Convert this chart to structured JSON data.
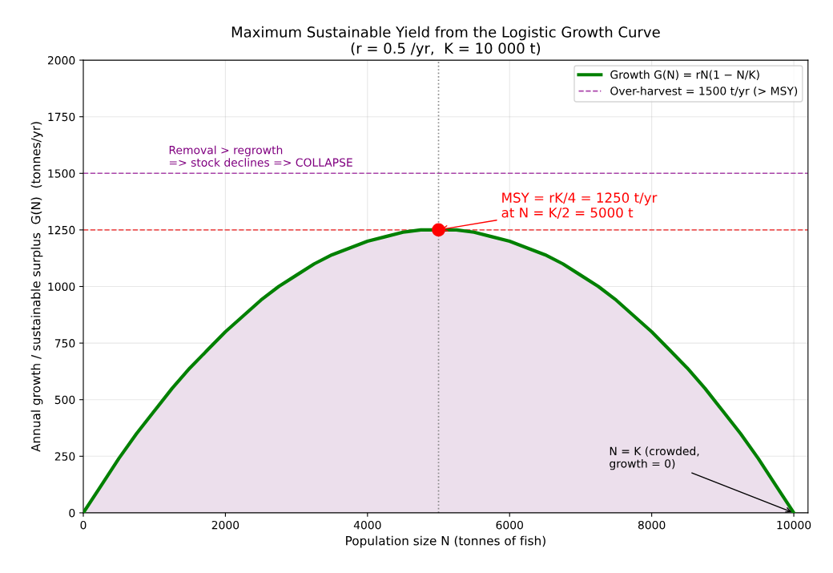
{
  "chart_data": {
    "type": "area",
    "title": "Maximum Sustainable Yield from the Logistic Growth Curve\n(r = 0.5 /yr,  K = 10 000 t)",
    "xlabel": "Population size N (tonnes of fish)",
    "ylabel": "Annual growth / sustainable surplus  G(N)  (tonnes/yr)",
    "x": [
      0,
      250,
      500,
      750,
      1000,
      1250,
      1500,
      1750,
      2000,
      2250,
      2500,
      2750,
      3000,
      3250,
      3500,
      3750,
      4000,
      4250,
      4500,
      4750,
      5000,
      5250,
      5500,
      5750,
      6000,
      6250,
      6500,
      6750,
      7000,
      7250,
      7500,
      7750,
      8000,
      8250,
      8500,
      8750,
      9000,
      9250,
      9500,
      9750,
      10000
    ],
    "series": [
      {
        "name": "Growth G(N) = rN(1 − N/K)",
        "color": "#008000",
        "values": [
          0,
          120,
          240,
          350,
          450,
          550,
          640,
          720,
          800,
          870,
          940,
          1000,
          1050,
          1100,
          1140,
          1170,
          1200,
          1220,
          1240,
          1250,
          1250,
          1250,
          1240,
          1220,
          1200,
          1170,
          1140,
          1100,
          1050,
          1000,
          940,
          870,
          800,
          720,
          640,
          550,
          450,
          350,
          240,
          120,
          0
        ]
      },
      {
        "type": "scatter",
        "color": "#ff0000",
        "x": [
          5000
        ],
        "values": [
          1250
        ],
        "marker": "circle"
      }
    ],
    "ref_lines": [
      {
        "axis": "y",
        "value": 1500,
        "label": "Over-harvest = 1500 t/yr (> MSY)",
        "color": "#aa44aa",
        "line_style": "dashed"
      },
      {
        "axis": "y",
        "value": 1250,
        "color": "#ee5555",
        "line_style": "dashed"
      },
      {
        "axis": "x",
        "value": 5000,
        "color": "#888888",
        "line_style": "dotted"
      }
    ],
    "annotations": [
      {
        "text": "Removal > regrowth\n=> stock declines => COLLAPSE",
        "x": 1200,
        "y": 1500
      },
      {
        "text": "MSY = rK/4 = 1250 t/yr\nat N = K/2 = 5000 t",
        "x": 5000,
        "y": 1250
      },
      {
        "text": "N = K (crowded,\ngrowth = 0)",
        "x": 10000,
        "y": 0
      }
    ],
    "xlim": [
      0,
      10200
    ],
    "xticks": [
      0,
      2000,
      4000,
      6000,
      8000,
      10000
    ],
    "ylim": [
      0,
      2000
    ],
    "yticks": [
      0,
      250,
      500,
      750,
      1000,
      1250,
      1500,
      1750,
      2000
    ],
    "grid": true,
    "legend": "top right"
  }
}
